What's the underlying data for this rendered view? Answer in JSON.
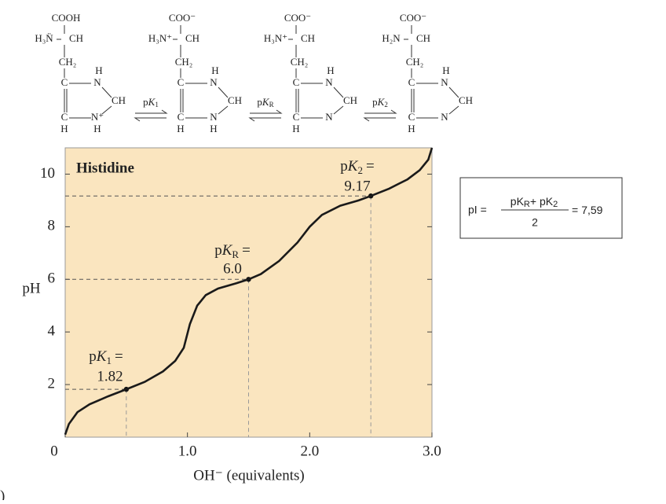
{
  "chart_data": {
    "type": "line",
    "title": "Histidine",
    "xlabel": "OH⁻ (equivalents)",
    "ylabel": "pH",
    "panel_label": ")",
    "xlim": [
      0,
      3
    ],
    "ylim": [
      0,
      11
    ],
    "xticks": [
      0,
      {
        "value": 1,
        "label": "1.0"
      },
      {
        "value": 2,
        "label": "2.0"
      },
      {
        "value": 3,
        "label": "3.0"
      }
    ],
    "yticks": [
      2,
      4,
      6,
      8,
      10
    ],
    "background": "#fae5bf",
    "color": "#1a1a1a",
    "x": [
      0,
      0.03,
      0.1,
      0.2,
      0.35,
      0.5,
      0.65,
      0.8,
      0.9,
      0.97,
      1.02,
      1.08,
      1.15,
      1.25,
      1.4,
      1.5,
      1.6,
      1.75,
      1.9,
      2.0,
      2.1,
      2.25,
      2.4,
      2.5,
      2.65,
      2.8,
      2.9,
      2.97,
      3.0
    ],
    "values": [
      0.1,
      0.5,
      0.95,
      1.25,
      1.55,
      1.82,
      2.1,
      2.5,
      2.9,
      3.4,
      4.3,
      5.0,
      5.4,
      5.65,
      5.85,
      6.0,
      6.2,
      6.7,
      7.4,
      8.0,
      8.45,
      8.8,
      9.0,
      9.17,
      9.45,
      9.8,
      10.15,
      10.55,
      11.0
    ],
    "pk_points": [
      {
        "p": "p",
        "K": "K",
        "sub": "1",
        "eq": "=",
        "x": 0.5,
        "value": 1.82
      },
      {
        "p": "p",
        "K": "K",
        "sub": "R",
        "eq": "=",
        "x": 1.5,
        "value": 6.0,
        "value_label": "6.0"
      },
      {
        "p": "p",
        "K": "K",
        "sub": "2",
        "eq": "=",
        "x": 2.5,
        "value": 9.17
      }
    ],
    "formula": {
      "lhs": "pI =",
      "num_a": "pK",
      "num_a_sub": "R",
      "plus": "+ pK",
      "num_b_sub": "2",
      "den": "2",
      "eq": "=",
      "result": {
        "value": 7.59,
        "label": "7,59"
      }
    },
    "arrow_labels": [
      [
        "p",
        "K",
        "1"
      ],
      [
        "p",
        "K",
        "R"
      ],
      [
        "p",
        "K",
        "2"
      ]
    ],
    "structures": [
      [
        "COOH",
        "H₃N̈",
        "CH",
        "CH₂",
        "C",
        "N",
        "H",
        "CH",
        "C",
        "N⁺",
        "H",
        "H"
      ],
      [
        "COO⁻",
        "H₃N⁺",
        "CH",
        "CH₂",
        "C",
        "N",
        "H",
        "CH",
        "C",
        "N",
        "H",
        "H"
      ],
      [
        "COO⁻",
        "H₃N⁺",
        "CH",
        "CH₂",
        "C",
        "N",
        "H",
        "CH",
        "C",
        "N",
        "H"
      ],
      [
        "COO⁻",
        "H₂N",
        "CH",
        "CH₂",
        "C",
        "N",
        "H",
        "CH",
        "C",
        "N",
        "H"
      ]
    ]
  }
}
